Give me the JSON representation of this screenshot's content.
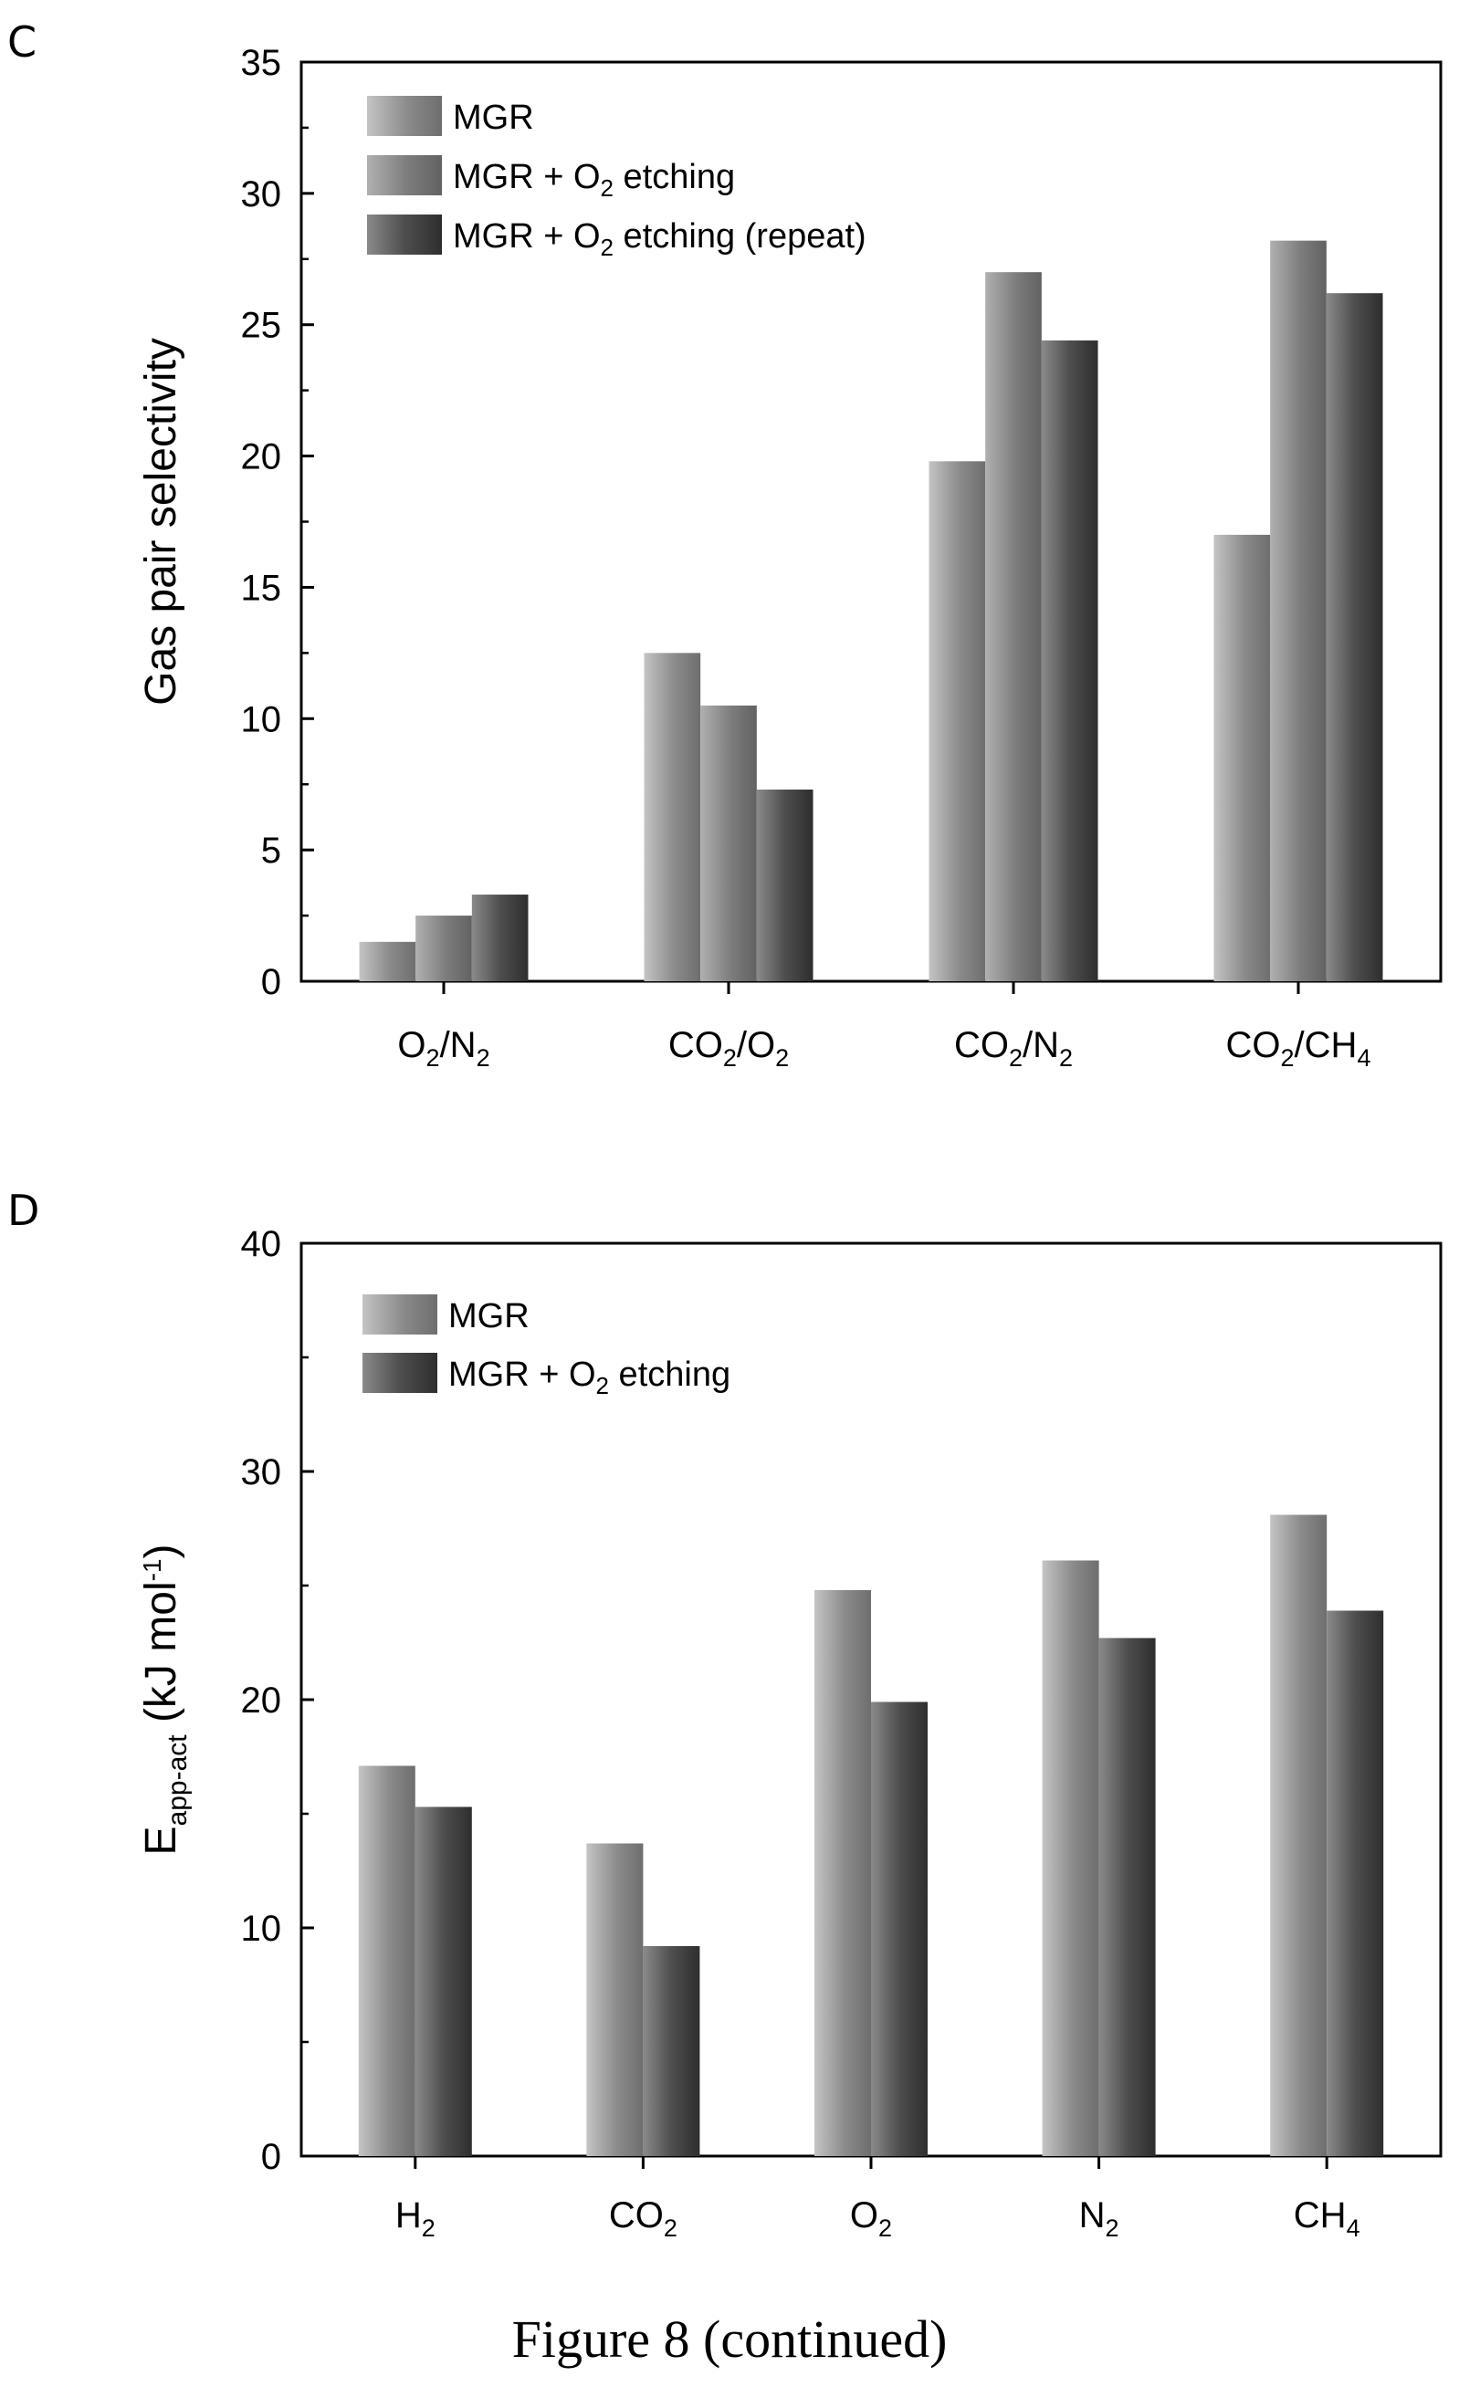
{
  "caption": "Figure 8 (continued)",
  "chart_data": [
    {
      "panel": "C",
      "type": "bar",
      "ylabel": "Gas pair selectivity",
      "xlabel": "",
      "ylim": [
        0,
        35
      ],
      "yticks": [
        "0",
        "5",
        "10",
        "15",
        "20",
        "25",
        "30",
        "35"
      ],
      "categories": [
        {
          "main": "O",
          "sub1": "2",
          "mid": "/N",
          "sub2": "2",
          "tail": ""
        },
        {
          "main": "CO",
          "sub1": "2",
          "mid": "/O",
          "sub2": "2",
          "tail": ""
        },
        {
          "main": "CO",
          "sub1": "2",
          "mid": "/N",
          "sub2": "2",
          "tail": ""
        },
        {
          "main": "CO",
          "sub1": "2",
          "mid": "/CH",
          "sub2": "4",
          "tail": ""
        }
      ],
      "series": [
        {
          "name": "MGR",
          "values": [
            1.5,
            12.5,
            19.8,
            17.0
          ],
          "color": "#8c8c8c"
        },
        {
          "name": "MGR + O2 etching",
          "values": [
            2.5,
            10.5,
            27.0,
            28.2
          ],
          "color": "#8c8c8c"
        },
        {
          "name": "MGR + O2 etching (repeat)",
          "values": [
            3.3,
            7.3,
            24.4,
            26.2
          ],
          "color": "#555555"
        }
      ],
      "legend": [
        {
          "a": "MGR",
          "sub": "",
          "b": ""
        },
        {
          "a": "MGR + O",
          "sub": "2",
          "b": " etching"
        },
        {
          "a": "MGR + O",
          "sub": "2",
          "b": " etching (repeat)"
        }
      ],
      "legend_position": "top-left",
      "grid": false
    },
    {
      "panel": "D",
      "type": "bar",
      "ylabel": {
        "main": "E",
        "sub": "app-act",
        "rest": " (kJ mol",
        "sup": "-1",
        "end": ")"
      },
      "xlabel": "",
      "ylim": [
        0,
        40
      ],
      "yticks": [
        "0",
        "10",
        "20",
        "30",
        "40"
      ],
      "categories": [
        {
          "main": "H",
          "sub1": "2",
          "mid": "",
          "sub2": "",
          "tail": ""
        },
        {
          "main": "CO",
          "sub1": "2",
          "mid": "",
          "sub2": "",
          "tail": ""
        },
        {
          "main": "O",
          "sub1": "2",
          "mid": "",
          "sub2": "",
          "tail": ""
        },
        {
          "main": "N",
          "sub1": "2",
          "mid": "",
          "sub2": "",
          "tail": ""
        },
        {
          "main": "CH",
          "sub1": "4",
          "mid": "",
          "sub2": "",
          "tail": ""
        }
      ],
      "series": [
        {
          "name": "MGR",
          "values": [
            17.1,
            13.7,
            24.8,
            26.1,
            28.1
          ],
          "color": "#8c8c8c"
        },
        {
          "name": "MGR + O2 etching",
          "values": [
            15.3,
            9.2,
            19.9,
            22.7,
            23.9
          ],
          "color": "#4a4a4a"
        }
      ],
      "legend": [
        {
          "a": "MGR",
          "sub": "",
          "b": ""
        },
        {
          "a": "MGR + O",
          "sub": "2",
          "b": " etching"
        }
      ],
      "legend_position": "top-left",
      "grid": false
    }
  ]
}
